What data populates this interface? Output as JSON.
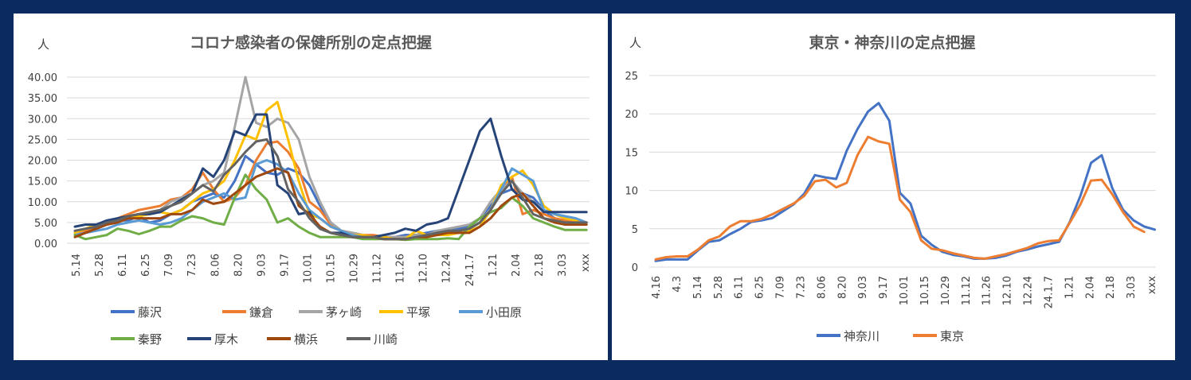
{
  "chart_data": [
    {
      "type": "line",
      "title": "コロナ感染者の保健所別の定点把握",
      "ylabel": "人",
      "xlabel": "",
      "ylim": [
        0,
        40
      ],
      "yticks": [
        "0.00",
        "5.00",
        "10.00",
        "15.00",
        "20.00",
        "25.00",
        "30.00",
        "35.00",
        "40.00"
      ],
      "x_tick_labels": [
        "5.14",
        "5.28",
        "6.11",
        "6.25",
        "7.09",
        "7.23",
        "8.06",
        "8.20",
        "9.03",
        "9.17",
        "10.01",
        "10.15",
        "10.29",
        "11.12",
        "11.26",
        "12.10",
        "12.24",
        "24.1.7",
        "1.21",
        "2.04",
        "2.18",
        "3.03",
        "xxx"
      ],
      "grid": true,
      "legend_position": "bottom",
      "series": [
        {
          "name": "藤沢",
          "color": "#4472c4",
          "values": [
            2.5,
            3,
            3.5,
            4.5,
            5.5,
            5.5,
            6.5,
            5,
            5.5,
            7,
            8,
            10,
            11,
            12,
            11,
            15,
            21,
            19,
            17,
            16.5,
            18,
            17,
            14,
            9,
            5,
            3,
            2.5,
            2,
            1.5,
            1.5,
            1.5,
            2,
            2,
            2.5,
            3,
            3,
            3.5,
            4,
            6,
            9,
            12,
            13,
            12,
            11,
            8,
            6,
            5.5,
            5,
            4.5
          ]
        },
        {
          "name": "鎌倉",
          "color": "#ed7d31",
          "values": [
            2,
            3,
            4,
            5,
            6,
            7,
            8,
            8.5,
            9,
            10.5,
            11,
            13,
            17,
            13,
            10,
            11,
            14,
            20,
            24,
            24.5,
            22,
            18,
            10,
            8,
            4.5,
            3,
            2.5,
            2,
            2,
            1.5,
            1.5,
            1.5,
            2,
            2,
            2.5,
            3,
            3,
            3.5,
            5,
            8,
            13,
            16,
            7,
            8,
            7,
            6,
            5.5,
            5,
            5
          ]
        },
        {
          "name": "茅ヶ崎",
          "color": "#a5a5a5",
          "values": [
            3,
            3.5,
            4,
            4.5,
            5.5,
            6,
            7,
            7.5,
            8,
            10,
            11,
            12,
            14,
            15,
            17,
            28,
            40,
            29,
            28,
            30,
            29,
            25,
            16,
            10,
            5,
            3,
            2.5,
            2,
            1.5,
            1.5,
            1.5,
            1.5,
            2,
            2,
            3,
            3.5,
            4,
            4.5,
            6,
            10,
            13,
            15,
            12,
            10,
            8,
            7,
            6,
            5.5,
            5
          ]
        },
        {
          "name": "平塚",
          "color": "#ffc000",
          "values": [
            2.5,
            3.5,
            4.5,
            5,
            5.5,
            6,
            6.5,
            7,
            7.5,
            7,
            8,
            10,
            12,
            13,
            15,
            20,
            26,
            25,
            32,
            34,
            25,
            15,
            7,
            6,
            4,
            3,
            2,
            2,
            1.5,
            1.5,
            1,
            1,
            3,
            2,
            2,
            2,
            2.5,
            3,
            4,
            8,
            14,
            16,
            17.5,
            14,
            9,
            7,
            6,
            5.5,
            5
          ]
        },
        {
          "name": "小田原",
          "color": "#5b9bd5",
          "values": [
            2,
            2.5,
            3,
            3.5,
            4.5,
            5,
            5.5,
            5,
            4.5,
            5,
            6,
            8,
            10,
            11,
            12,
            10.5,
            11,
            19,
            20,
            19,
            17,
            12,
            8,
            6,
            4,
            3,
            2,
            1.5,
            1.5,
            1,
            1,
            1,
            1.5,
            2,
            2.5,
            3,
            3,
            3.5,
            5,
            8,
            13,
            18,
            16.5,
            15,
            8,
            7,
            6.5,
            6,
            5
          ]
        },
        {
          "name": "秦野",
          "color": "#70ad47",
          "values": [
            2,
            1,
            1.5,
            2,
            3.5,
            3,
            2.2,
            3,
            4,
            4,
            5.5,
            6.5,
            6,
            5,
            4.5,
            11,
            16.5,
            13,
            10.5,
            5,
            6,
            4,
            2.5,
            1.5,
            1.5,
            1.5,
            1.5,
            1,
            1,
            1,
            1,
            0.8,
            1,
            1,
            1,
            1.2,
            1,
            4,
            6,
            7.5,
            8.5,
            11,
            9,
            6,
            5,
            4,
            3.2,
            3.2,
            3.2
          ]
        },
        {
          "name": "厚木",
          "color": "#264478",
          "values": [
            4,
            4.5,
            4.5,
            5.5,
            6,
            6.5,
            7,
            7,
            7.5,
            9,
            10.5,
            12,
            18,
            16,
            20,
            27,
            26,
            31,
            31,
            14,
            12,
            7,
            7.5,
            3.5,
            2.5,
            2.5,
            1.5,
            1.5,
            1.5,
            2,
            2.5,
            3.5,
            3,
            4.5,
            5,
            6,
            13,
            20,
            27,
            30,
            21,
            13,
            10.5,
            10,
            7.5,
            7.5,
            7.5,
            7.5,
            7.5
          ]
        },
        {
          "name": "横浜",
          "color": "#9e480e",
          "values": [
            1.5,
            2.5,
            3.5,
            4.5,
            5,
            6,
            6,
            6,
            6,
            7,
            7,
            8,
            10.5,
            9.5,
            10,
            12,
            14,
            16,
            17,
            18,
            17,
            9,
            7,
            4,
            2.5,
            2,
            1.5,
            1.5,
            1.5,
            1,
            1,
            1,
            1.5,
            1.5,
            2,
            2.5,
            2.5,
            2.5,
            4,
            6,
            9,
            11,
            12,
            9,
            6,
            5,
            4.5,
            4.5,
            4.5
          ]
        },
        {
          "name": "川崎",
          "color": "#636363",
          "values": [
            3,
            3.5,
            4,
            5,
            5.5,
            6.5,
            7,
            7.5,
            8,
            9,
            10,
            12,
            14,
            12.5,
            16.5,
            19,
            22,
            24.5,
            25,
            21,
            13,
            10,
            6,
            3.5,
            2.5,
            2,
            1.5,
            1.5,
            1.5,
            1,
            1,
            1,
            1.5,
            2,
            2.5,
            3,
            3,
            3.5,
            5,
            8,
            12,
            15,
            11,
            7,
            6,
            5.5,
            5,
            5,
            5
          ]
        }
      ]
    },
    {
      "type": "line",
      "title": "東京・神奈川の定点把握",
      "ylabel": "人",
      "xlabel": "",
      "ylim": [
        0,
        25
      ],
      "yticks": [
        "0",
        "5",
        "10",
        "15",
        "20",
        "25"
      ],
      "x_tick_labels": [
        "4.16",
        "4.3",
        "5.14",
        "5.28",
        "6.11",
        "6.25",
        "7.09",
        "7.23",
        "8.06",
        "8.20",
        "9.03",
        "9.17",
        "10.01",
        "10.15",
        "10.29",
        "11.12",
        "11.26",
        "12.10",
        "12.24",
        "24.1.7",
        "1.21",
        "2.04",
        "2.18",
        "3.03",
        "xxx"
      ],
      "grid": true,
      "legend_position": "bottom",
      "series": [
        {
          "name": "神奈川",
          "color": "#4472c4",
          "values": [
            0.8,
            1.0,
            1.0,
            1.0,
            2.2,
            3.3,
            3.5,
            4.3,
            5.0,
            5.9,
            6.1,
            6.4,
            7.3,
            8.2,
            9.6,
            12.0,
            11.7,
            11.5,
            15.2,
            18.0,
            20.3,
            21.4,
            19.1,
            9.7,
            8.3,
            4.1,
            2.9,
            2.0,
            1.6,
            1.4,
            1.1,
            1.1,
            1.2,
            1.5,
            2.0,
            2.3,
            2.7,
            3.0,
            3.3,
            5.9,
            9.3,
            13.6,
            14.6,
            10.3,
            7.5,
            6.1,
            5.3,
            4.9
          ]
        },
        {
          "name": "東京",
          "color": "#ed7d31",
          "values": [
            1.0,
            1.3,
            1.4,
            1.4,
            2.3,
            3.5,
            4.0,
            5.3,
            6.0,
            6.0,
            6.3,
            6.9,
            7.6,
            8.3,
            9.3,
            11.2,
            11.4,
            10.4,
            11.0,
            14.6,
            17.0,
            16.4,
            16.1,
            8.8,
            7.2,
            3.5,
            2.4,
            2.2,
            1.8,
            1.5,
            1.2,
            1.1,
            1.4,
            1.7,
            2.1,
            2.5,
            3.1,
            3.4,
            3.5,
            5.8,
            8.2,
            11.3,
            11.4,
            9.5,
            7.2,
            5.3,
            4.6
          ]
        }
      ]
    }
  ]
}
